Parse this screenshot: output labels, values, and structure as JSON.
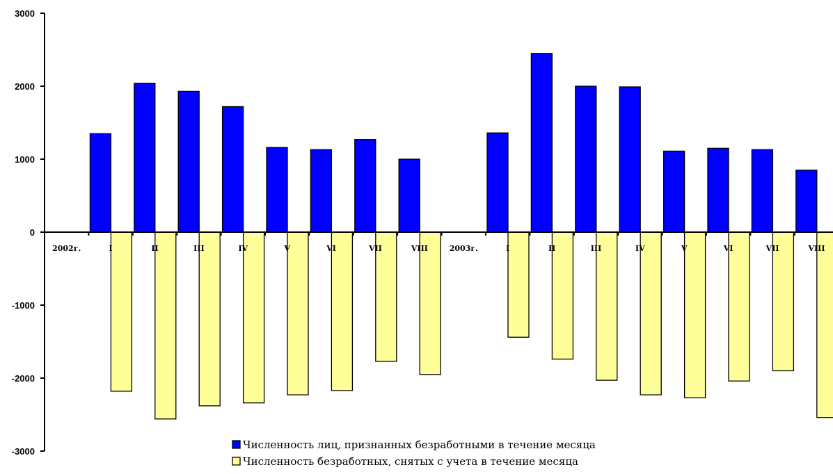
{
  "chart_data": {
    "type": "bar",
    "title": "",
    "xlabel": "",
    "ylabel": "",
    "ylim": [
      -3000,
      3000
    ],
    "yticks": [
      3000,
      2000,
      1000,
      0,
      -1000,
      -2000,
      -3000
    ],
    "categories": [
      "2002г.",
      "I",
      "II",
      "III",
      "IV",
      "V",
      "VI",
      "VII",
      "VIII",
      "2003г.",
      "I",
      "II",
      "III",
      "IV",
      "V",
      "VI",
      "VII",
      "VIII"
    ],
    "series": [
      {
        "name": "Численность лиц, признанных безработными в течение месяца",
        "color": "#0000ff",
        "values": [
          null,
          1350,
          2040,
          1930,
          1720,
          1160,
          1130,
          1270,
          1000,
          null,
          1360,
          2450,
          2000,
          1990,
          1110,
          1150,
          1130,
          850
        ]
      },
      {
        "name": "Численность безработных, снятых с учета в течение месяца",
        "color": "#ffff99",
        "values": [
          null,
          -2180,
          -2560,
          -2380,
          -2340,
          -2230,
          -2170,
          -1770,
          -1950,
          null,
          -1440,
          -1740,
          -2030,
          -2230,
          -2270,
          -2040,
          -1900,
          -2540
        ]
      }
    ],
    "legend_position": "bottom",
    "grid": false
  }
}
